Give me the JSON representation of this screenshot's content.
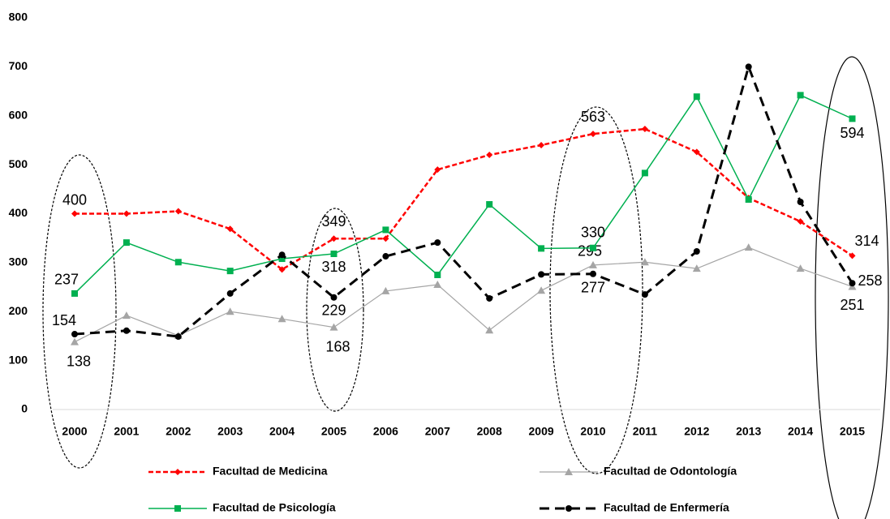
{
  "chart_data": {
    "type": "line",
    "categories": [
      "2000",
      "2001",
      "2002",
      "2003",
      "2004",
      "2005",
      "2006",
      "2007",
      "2008",
      "2009",
      "2010",
      "2011",
      "2012",
      "2013",
      "2014",
      "2015"
    ],
    "ylim": [
      0,
      800
    ],
    "yticks": [
      0,
      100,
      200,
      300,
      400,
      500,
      600,
      700,
      800
    ],
    "grid": false,
    "legend": "bottom",
    "series": [
      {
        "name": "Facultad de Medicina",
        "color": "#ff0000",
        "marker": "diamond",
        "dashed": true,
        "values": [
          400,
          400,
          405,
          369,
          286,
          349,
          349,
          490,
          520,
          540,
          563,
          573,
          526,
          432,
          384,
          314
        ],
        "value_labels": [
          "400",
          null,
          null,
          null,
          null,
          "349",
          null,
          null,
          null,
          null,
          "563",
          null,
          null,
          null,
          null,
          "314"
        ]
      },
      {
        "name": "Facultad de Odontología",
        "color": "#a5a5a5",
        "marker": "triangle",
        "dashed": false,
        "values": [
          138,
          192,
          151,
          200,
          185,
          168,
          242,
          255,
          162,
          243,
          295,
          301,
          288,
          331,
          288,
          251
        ],
        "value_labels": [
          "138",
          null,
          null,
          null,
          null,
          "168",
          null,
          null,
          null,
          null,
          "295",
          null,
          null,
          null,
          null,
          "251"
        ]
      },
      {
        "name": "Facultad de Psicología",
        "color": "#00b050",
        "marker": "square",
        "dashed": false,
        "values": [
          237,
          341,
          301,
          283,
          308,
          318,
          367,
          275,
          419,
          329,
          330,
          483,
          639,
          429,
          642,
          594
        ],
        "value_labels": [
          "237",
          null,
          null,
          null,
          null,
          "318",
          null,
          null,
          null,
          null,
          "330",
          null,
          null,
          null,
          null,
          "594"
        ]
      },
      {
        "name": "Facultad de Enfermería",
        "color": "#000000",
        "marker": "circle",
        "dashed": true,
        "values": [
          154,
          161,
          149,
          237,
          316,
          229,
          313,
          341,
          227,
          276,
          277,
          235,
          323,
          700,
          424,
          258
        ],
        "value_labels": [
          "154",
          null,
          null,
          null,
          null,
          "229",
          null,
          null,
          null,
          null,
          "277",
          null,
          null,
          null,
          null,
          "258"
        ]
      }
    ]
  }
}
